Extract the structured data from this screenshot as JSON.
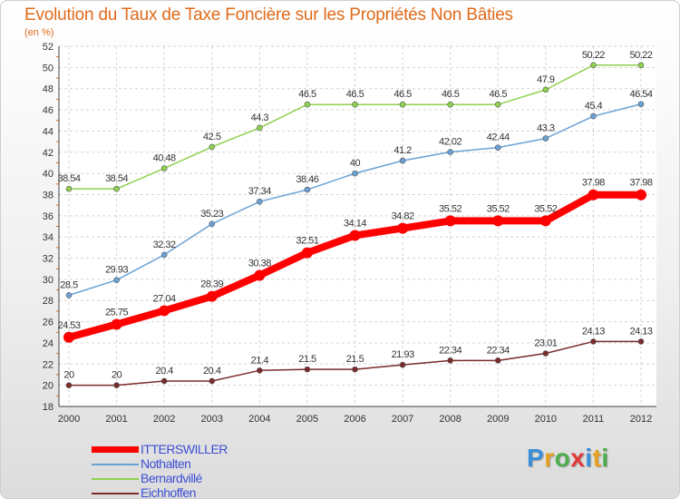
{
  "title": "Evolution du Taux de Taxe Foncière sur les Propriétés Non Bâties",
  "subtitle": "(en %)",
  "chart_data": {
    "type": "line",
    "title": "Evolution du Taux de Taxe Foncière sur les Propriétés Non Bâties",
    "ylabel": "(en %)",
    "xlabel": "",
    "x": [
      "2000",
      "2001",
      "2002",
      "2003",
      "2004",
      "2005",
      "2006",
      "2007",
      "2008",
      "2009",
      "2010",
      "2011",
      "2012"
    ],
    "ylim": [
      18,
      52
    ],
    "yticks": [
      "18",
      "20",
      "22",
      "24",
      "26",
      "28",
      "30",
      "32",
      "34",
      "36",
      "38",
      "40",
      "42",
      "44",
      "46",
      "48",
      "50",
      "52"
    ],
    "grid": true,
    "legend_position": "bottom-left",
    "series": [
      {
        "name": "Bernardvillé",
        "color": "#8fd14f",
        "values": [
          38.54,
          38.54,
          40.48,
          42.5,
          44.3,
          46.5,
          46.5,
          46.5,
          46.5,
          46.5,
          47.9,
          50.22,
          50.22
        ],
        "labels": [
          "38.54",
          "38.54",
          "40.48",
          "42.5",
          "44.3",
          "46.5",
          "46.5",
          "46.5",
          "46.5",
          "46.5",
          "47.9",
          "50.22",
          "50.22"
        ]
      },
      {
        "name": "Nothalten",
        "color": "#6aa2d6",
        "values": [
          28.5,
          29.93,
          32.32,
          35.23,
          37.34,
          38.46,
          40,
          41.2,
          42.02,
          42.44,
          43.3,
          45.4,
          46.54
        ],
        "labels": [
          "28.5",
          "29.93",
          "32.32",
          "35.23",
          "37.34",
          "38.46",
          "40",
          "41.2",
          "42.02",
          "42.44",
          "43.3",
          "45.4",
          "46.54"
        ]
      },
      {
        "name": "Eichhoffen",
        "color": "#7b2b2b",
        "values": [
          20,
          20,
          20.4,
          20.4,
          21.4,
          21.5,
          21.5,
          21.93,
          22.34,
          22.34,
          23.01,
          24.13,
          24.13
        ],
        "labels": [
          "20",
          "20",
          "20.4",
          "20.4",
          "21.4",
          "21.5",
          "21.5",
          "21.93",
          "22.34",
          "22.34",
          "23.01",
          "24.13",
          "24.13"
        ]
      },
      {
        "name": "ITTERSWILLER",
        "color": "#ff0000",
        "values": [
          24.53,
          25.75,
          27.04,
          28.39,
          30.38,
          32.51,
          34.14,
          34.82,
          35.52,
          35.52,
          35.52,
          37.98,
          37.98
        ],
        "labels": [
          "24.53",
          "25.75",
          "27.04",
          "28.39",
          "30.38",
          "32.51",
          "34.14",
          "34.82",
          "35.52",
          "35.52",
          "35.52",
          "37.98",
          "37.98"
        ]
      }
    ]
  },
  "legend": [
    {
      "label": "ITTERSWILLER",
      "color": "#ff0000",
      "weight": "thick"
    },
    {
      "label": "Nothalten",
      "color": "#6aa2d6",
      "weight": "thin"
    },
    {
      "label": "Bernardvillé",
      "color": "#8fd14f",
      "weight": "thin"
    },
    {
      "label": "Eichhoffen",
      "color": "#7b2b2b",
      "weight": "thin"
    }
  ],
  "logo": {
    "letters": [
      "P",
      "r",
      "o",
      "x",
      "i",
      "t",
      "i"
    ],
    "colors": [
      "#3a8fd8",
      "#e8a020",
      "#4cae4c",
      "#e23a3a",
      "#3a8fd8",
      "#e8a020",
      "#4cae4c"
    ]
  }
}
